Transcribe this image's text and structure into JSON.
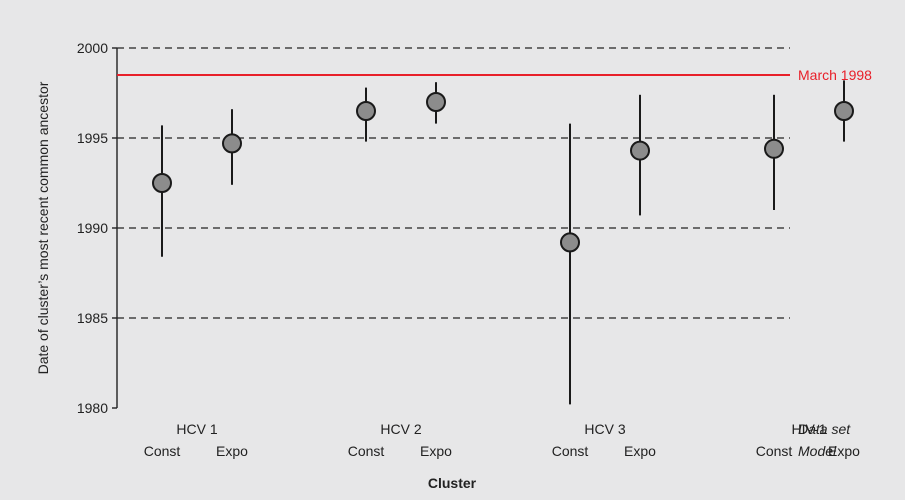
{
  "chart_data": {
    "type": "scatter",
    "xlabel": "Cluster",
    "ylabel": "Date of cluster’s most recent common ancestor",
    "ylim": [
      1980,
      2000
    ],
    "yticks": [
      1980,
      1985,
      1990,
      1995,
      2000
    ],
    "grid": "dashed horizontal lines at 1985, 1990, 1995, 2000",
    "row_labels": {
      "dataset": "Data set",
      "model": "Model"
    },
    "reference_line": {
      "value": 1998.5,
      "label": "March 1998",
      "color": "#e8202a"
    },
    "groups": [
      {
        "name": "HCV 1",
        "points": [
          {
            "model": "Const",
            "value": 1992.5,
            "low": 1988.4,
            "high": 1995.7
          },
          {
            "model": "Expo",
            "value": 1994.7,
            "low": 1992.4,
            "high": 1996.6
          }
        ]
      },
      {
        "name": "HCV 2",
        "points": [
          {
            "model": "Const",
            "value": 1996.5,
            "low": 1994.8,
            "high": 1997.8
          },
          {
            "model": "Expo",
            "value": 1997.0,
            "low": 1995.8,
            "high": 1998.1
          }
        ]
      },
      {
        "name": "HCV 3",
        "points": [
          {
            "model": "Const",
            "value": 1989.2,
            "low": 1980.2,
            "high": 1995.8
          },
          {
            "model": "Expo",
            "value": 1994.3,
            "low": 1990.7,
            "high": 1997.4
          }
        ]
      },
      {
        "name": "HIV-1",
        "points": [
          {
            "model": "Const",
            "value": 1994.4,
            "low": 1991.0,
            "high": 1997.4
          },
          {
            "model": "Expo",
            "value": 1996.5,
            "low": 1994.8,
            "high": 1998.2
          }
        ]
      }
    ],
    "colors": {
      "marker_fill": "#8c8c8c",
      "marker_stroke": "#1a1a1a",
      "axis": "#222222"
    }
  }
}
